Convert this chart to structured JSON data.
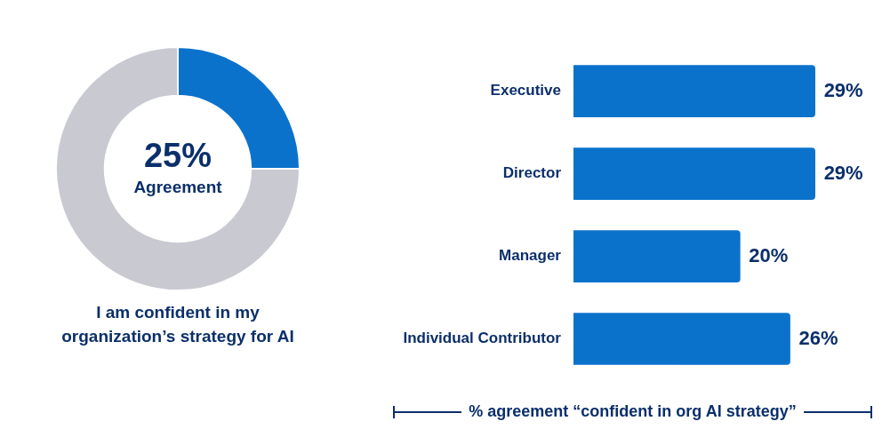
{
  "chart_data": [
    {
      "type": "donut",
      "title": "I am confident in my organization’s strategy for AI",
      "categories": [
        null,
        null
      ],
      "values": [
        25,
        75
      ],
      "colors": [
        "#0b72cc",
        "#c9c9d1"
      ],
      "value_labels": [
        "25%",
        null
      ],
      "annotations": [
        "Agreement"
      ]
    },
    {
      "type": "bar",
      "orientation": "horizontal",
      "xlabel": "% agreement “confident in org AI strategy”",
      "categories": [
        "Executive",
        "Director",
        "Manager",
        "Individual Contributor"
      ],
      "values": [
        29,
        29,
        20,
        26
      ],
      "color": "#0b72cc",
      "value_labels": [
        "29%",
        "29%",
        "20%",
        "26%"
      ],
      "tick_labels": "y",
      "grid": false
    }
  ]
}
